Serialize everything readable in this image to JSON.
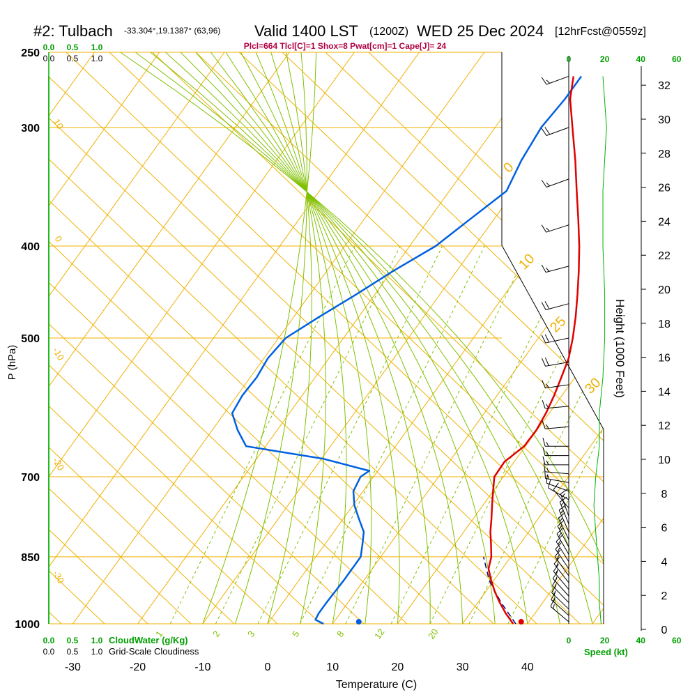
{
  "header": {
    "station": "#2: Tulbach",
    "coords": "-33.304°,19.1387° (63,96)",
    "valid": "Valid 1400 LST",
    "zulu": "(1200Z)",
    "date": "WED 25 Dec 2024",
    "forecast": "[12hrFcst@0559z]",
    "indices": "Plcl=664 Tlcl[C]=1 Shox=8 Pwat[cm]=1 Cape[J]= 24"
  },
  "colors": {
    "isotherm": "#f0b000",
    "dry_adiabat": "#f0b000",
    "moist_adiabat": "#80c000",
    "mixing_ratio": "#80c000",
    "temperature": "#e00000",
    "dewpoint": "#0060e0",
    "parcel": "#000080",
    "green_text": "#00a000",
    "title_red": "#b00040"
  },
  "chart_data": {
    "type": "line",
    "subtype": "skew-T log-P sounding",
    "xlabel": "Temperature (C)",
    "ylabel": "P (hPa)",
    "right_ylabel": "Height (1000 Feet)",
    "x_ticks": [
      "-30",
      "-20",
      "-10",
      "0",
      "10",
      "20",
      "30",
      "40"
    ],
    "x_tick_values": [
      -30,
      -20,
      -10,
      0,
      10,
      20,
      30,
      40
    ],
    "y_ticks": [
      "250",
      "300",
      "400",
      "500",
      "700",
      "850",
      "1000"
    ],
    "y_tick_values": [
      250,
      300,
      400,
      500,
      700,
      850,
      1000
    ],
    "xlim": [
      -34,
      52
    ],
    "ylim": [
      1000,
      250
    ],
    "skew_deg_per_ln_p": 0,
    "height_ticks": [
      "32",
      "30",
      "28",
      "26",
      "24",
      "22",
      "20",
      "18",
      "16",
      "14",
      "12",
      "10",
      "8",
      "6",
      "4",
      "2",
      "0"
    ],
    "height_kft": [
      32,
      30,
      28,
      26,
      24,
      22,
      20,
      18,
      16,
      14,
      12,
      10,
      8,
      6,
      4,
      2,
      0
    ],
    "top_scale_green": [
      "0.0",
      "0.5",
      "1.0"
    ],
    "top_scale_black": [
      "0.0",
      "0.5",
      "1.0"
    ],
    "bottom_scale_green": [
      "0.0",
      "0.5",
      "1.0"
    ],
    "bottom_scale_black": [
      "0.0",
      "0.5",
      "1.0"
    ],
    "cloudwater_label": "CloudWater (g/Kg)",
    "cloudiness_label": "Grid-Scale Cloudiness",
    "speed_ticks_top": [
      "0",
      "20",
      "40",
      "60"
    ],
    "speed_ticks_bottom": [
      "0",
      "20",
      "40",
      "60"
    ],
    "speed_values": [
      0,
      20,
      40,
      60
    ],
    "speed_label": "Speed (kt)",
    "mixing_ratio_labels": [
      "1",
      "2",
      "3",
      "5",
      "8",
      "12",
      "20"
    ],
    "dry_adiabat_left_labels": [
      "10",
      "0",
      "-10",
      "-20",
      "-30"
    ],
    "dry_adiabat_right_labels": [
      "0",
      "10",
      "25",
      "30"
    ],
    "series": [
      {
        "name": "Temperature",
        "pressure": [
          1000,
          975,
          950,
          925,
          900,
          875,
          850,
          825,
          800,
          775,
          750,
          725,
          700,
          675,
          650,
          625,
          600,
          575,
          550,
          525,
          500,
          475,
          450,
          425,
          400,
          375,
          350,
          325,
          300,
          280,
          265
        ],
        "temp_c": [
          37.8,
          35.5,
          33.4,
          31.4,
          29.6,
          27.9,
          27.0,
          25.6,
          24.1,
          22.8,
          21.4,
          20.0,
          18.6,
          18.5,
          19.8,
          19.9,
          19.5,
          18.8,
          17.9,
          16.9,
          15.3,
          13.4,
          11.2,
          8.8,
          6.1,
          3.0,
          -0.4,
          -4.0,
          -8.1,
          -11.6,
          -13.6
        ]
      },
      {
        "name": "Dewpoint",
        "pressure": [
          1000,
          990,
          975,
          950,
          925,
          900,
          875,
          850,
          825,
          800,
          775,
          750,
          725,
          700,
          690,
          670,
          650,
          625,
          600,
          575,
          550,
          525,
          500,
          475,
          450,
          425,
          400,
          375,
          350,
          325,
          300,
          280,
          265
        ],
        "dewpoint_c": [
          8.6,
          6.9,
          6.7,
          6.7,
          6.8,
          6.9,
          6.9,
          6.9,
          5.8,
          4.6,
          2.4,
          0.2,
          -1.5,
          -2.0,
          -1.3,
          -9.8,
          -23.0,
          -26.1,
          -28.8,
          -29.2,
          -29.0,
          -29.4,
          -28.9,
          -26.1,
          -22.9,
          -19.8,
          -16.0,
          -13.7,
          -11.2,
          -12.3,
          -12.9,
          -12.4,
          -12.4
        ]
      },
      {
        "name": "Parcel",
        "pressure": [
          1000,
          950,
          900,
          850
        ],
        "temp_c": [
          38.2,
          33.6,
          29.3,
          25.8
        ]
      }
    ],
    "surface_points": [
      {
        "name": "surface-temperature",
        "pressure": 995,
        "temp_c": 38.8
      },
      {
        "name": "surface-dewpoint",
        "pressure": 995,
        "temp_c": 13.8
      }
    ],
    "cloudwater_profile": [
      {
        "pressure": 265,
        "value": 0.0
      },
      {
        "pressure": 1000,
        "value": 0.0
      }
    ],
    "wind_speed_profile": {
      "pressure": [
        1000,
        950,
        900,
        850,
        800,
        750,
        700,
        650,
        600,
        550,
        500,
        450,
        400,
        350,
        300,
        265
      ],
      "speed_kt": [
        18,
        17,
        17,
        16,
        15,
        14,
        15,
        17,
        17,
        19,
        20,
        20,
        19,
        19,
        21,
        19
      ]
    },
    "wind_barbs": {
      "pressure": [
        995,
        980,
        965,
        950,
        935,
        920,
        905,
        890,
        875,
        860,
        845,
        830,
        815,
        800,
        785,
        770,
        755,
        740,
        725,
        710,
        695,
        680,
        665,
        650,
        620,
        590,
        560,
        530,
        500,
        460,
        420,
        380,
        340,
        300,
        265
      ],
      "speed_kt": [
        18,
        18,
        17,
        17,
        17,
        17,
        17,
        17,
        17,
        16,
        16,
        16,
        16,
        15,
        15,
        15,
        14,
        14,
        14,
        15,
        15,
        16,
        16,
        17,
        17,
        18,
        19,
        20,
        20,
        20,
        19,
        19,
        19,
        21,
        19
      ],
      "dir_deg": [
        310,
        312,
        314,
        316,
        318,
        320,
        322,
        324,
        326,
        328,
        330,
        332,
        334,
        336,
        338,
        340,
        320,
        300,
        290,
        280,
        275,
        270,
        270,
        270,
        265,
        265,
        262,
        260,
        258,
        255,
        255,
        252,
        250,
        250,
        250
      ]
    }
  }
}
